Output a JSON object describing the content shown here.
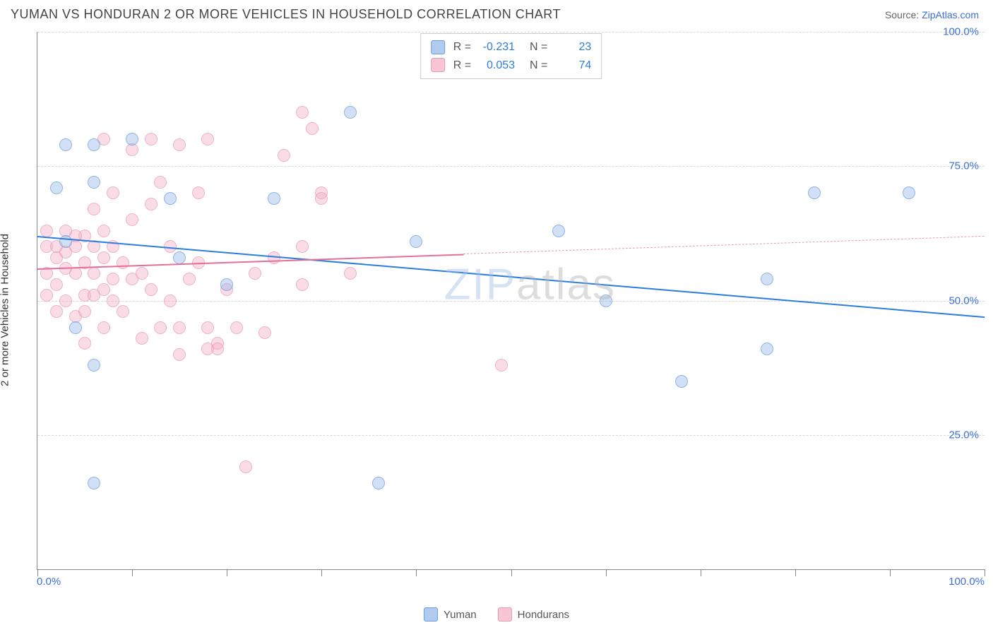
{
  "title": "YUMAN VS HONDURAN 2 OR MORE VEHICLES IN HOUSEHOLD CORRELATION CHART",
  "source_label": "Source:",
  "source_name": "ZipAtlas.com",
  "watermark_a": "ZIP",
  "watermark_b": "atlas",
  "chart": {
    "type": "scatter",
    "ylabel": "2 or more Vehicles in Household",
    "xlim": [
      0,
      100
    ],
    "ylim": [
      0,
      100
    ],
    "ytick_values": [
      25,
      50,
      75,
      100
    ],
    "ytick_labels": [
      "25.0%",
      "50.0%",
      "75.0%",
      "100.0%"
    ],
    "xtick_values": [
      0,
      10,
      20,
      30,
      40,
      50,
      60,
      70,
      80,
      90,
      100
    ],
    "xlabel_min": "0.0%",
    "xlabel_max": "100.0%",
    "grid_color": "#d8d8d8",
    "background_color": "#ffffff",
    "series": [
      {
        "name": "Yuman",
        "color_fill": "rgba(144,181,232,0.55)",
        "color_stroke": "#6a9de0",
        "R": "-0.231",
        "N": "23",
        "trend": {
          "x1": 0,
          "y1": 62,
          "x2": 100,
          "y2": 47,
          "color": "#2b7de0",
          "dashed_from": null
        },
        "points": [
          [
            3,
            79
          ],
          [
            6,
            79
          ],
          [
            10,
            80
          ],
          [
            2,
            71
          ],
          [
            6,
            72
          ],
          [
            14,
            69
          ],
          [
            25,
            69
          ],
          [
            33,
            85
          ],
          [
            15,
            58
          ],
          [
            4,
            45
          ],
          [
            6,
            38
          ],
          [
            6,
            16
          ],
          [
            36,
            16
          ],
          [
            40,
            61
          ],
          [
            55,
            63
          ],
          [
            60,
            50
          ],
          [
            68,
            35
          ],
          [
            77,
            54
          ],
          [
            77,
            41
          ],
          [
            82,
            70
          ],
          [
            92,
            70
          ],
          [
            3,
            61
          ],
          [
            20,
            53
          ]
        ]
      },
      {
        "name": "Hondurans",
        "color_fill": "rgba(244,172,194,0.55)",
        "color_stroke": "#e89bb3",
        "R": "0.053",
        "N": "74",
        "trend": {
          "x1": 0,
          "y1": 56,
          "x2": 100,
          "y2": 62,
          "color": "#e56f95",
          "dashed_from": 45
        },
        "points": [
          [
            1,
            60
          ],
          [
            1,
            55
          ],
          [
            2,
            58
          ],
          [
            2,
            53
          ],
          [
            2,
            48
          ],
          [
            3,
            63
          ],
          [
            3,
            56
          ],
          [
            3,
            50
          ],
          [
            4,
            60
          ],
          [
            4,
            55
          ],
          [
            4,
            47
          ],
          [
            5,
            62
          ],
          [
            5,
            57
          ],
          [
            5,
            51
          ],
          [
            5,
            42
          ],
          [
            6,
            55
          ],
          [
            6,
            60
          ],
          [
            6,
            67
          ],
          [
            7,
            80
          ],
          [
            7,
            58
          ],
          [
            7,
            52
          ],
          [
            7,
            45
          ],
          [
            8,
            70
          ],
          [
            8,
            60
          ],
          [
            8,
            54
          ],
          [
            9,
            57
          ],
          [
            9,
            48
          ],
          [
            10,
            78
          ],
          [
            10,
            65
          ],
          [
            10,
            54
          ],
          [
            11,
            55
          ],
          [
            11,
            43
          ],
          [
            12,
            80
          ],
          [
            12,
            68
          ],
          [
            12,
            52
          ],
          [
            13,
            72
          ],
          [
            13,
            45
          ],
          [
            14,
            60
          ],
          [
            14,
            50
          ],
          [
            15,
            79
          ],
          [
            15,
            45
          ],
          [
            15,
            40
          ],
          [
            16,
            54
          ],
          [
            17,
            70
          ],
          [
            17,
            57
          ],
          [
            18,
            80
          ],
          [
            18,
            45
          ],
          [
            18,
            41
          ],
          [
            19,
            42
          ],
          [
            19,
            41
          ],
          [
            20,
            52
          ],
          [
            21,
            45
          ],
          [
            22,
            19
          ],
          [
            23,
            55
          ],
          [
            24,
            44
          ],
          [
            25,
            58
          ],
          [
            26,
            77
          ],
          [
            28,
            85
          ],
          [
            28,
            60
          ],
          [
            28,
            53
          ],
          [
            29,
            82
          ],
          [
            30,
            70
          ],
          [
            30,
            69
          ],
          [
            33,
            55
          ],
          [
            49,
            38
          ],
          [
            1,
            63
          ],
          [
            1,
            51
          ],
          [
            2,
            60
          ],
          [
            3,
            59
          ],
          [
            4,
            62
          ],
          [
            5,
            48
          ],
          [
            6,
            51
          ],
          [
            7,
            63
          ],
          [
            8,
            50
          ]
        ]
      }
    ]
  },
  "legend_bottom": [
    {
      "label": "Yuman",
      "swatch": "blue"
    },
    {
      "label": "Hondurans",
      "swatch": "pink"
    }
  ]
}
